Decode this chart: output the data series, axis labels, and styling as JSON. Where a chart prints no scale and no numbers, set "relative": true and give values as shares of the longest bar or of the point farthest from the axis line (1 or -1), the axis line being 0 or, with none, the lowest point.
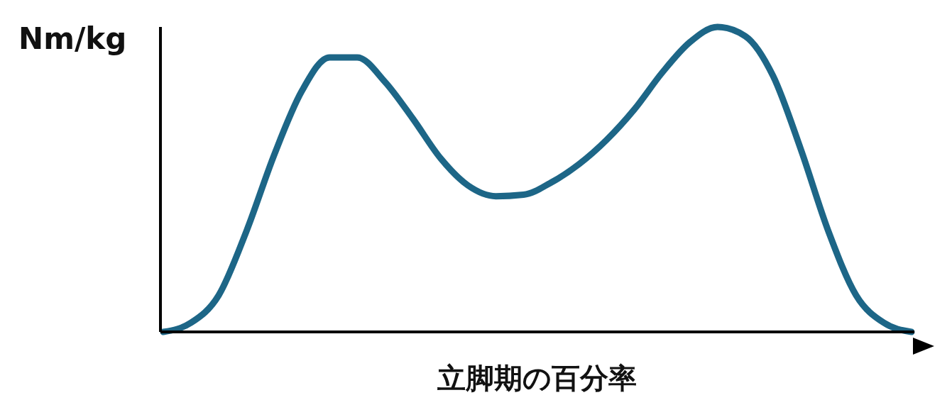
{
  "chart_data": {
    "type": "line",
    "relative": true,
    "xlabel": "立脚期の百分率",
    "ylabel": "Nm/kg",
    "categories": [
      null,
      null,
      null,
      null,
      null,
      null,
      null,
      null,
      null,
      null,
      null,
      null,
      null,
      null,
      null,
      null,
      null,
      null,
      null,
      null,
      null,
      null,
      null,
      null,
      null,
      null,
      null,
      null
    ],
    "series": [
      {
        "color": "#1d6687",
        "values": [
          0,
          0.03,
          0.12,
          0.33,
          0.58,
          0.79,
          0.9,
          0.9,
          0.82,
          0.7,
          0.57,
          0.48,
          0.445,
          0.45,
          0.49,
          0.55,
          0.63,
          0.73,
          0.85,
          0.95,
          1,
          0.97,
          0.84,
          0.6,
          0.33,
          0.12,
          0.03,
          0
        ]
      }
    ],
    "legend": false,
    "marker": "none",
    "line_style": "solid"
  }
}
